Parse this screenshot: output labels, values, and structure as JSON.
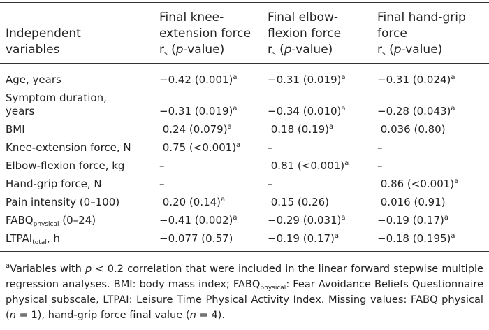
{
  "table": {
    "header": {
      "label": [
        "Independent",
        "variables"
      ],
      "columns": [
        {
          "title": [
            "Final knee-",
            "extension force"
          ],
          "stat": [
            {
              "text": "r"
            },
            {
              "text": "s",
              "fmt": "sub"
            },
            {
              "text": " ("
            },
            {
              "text": "p",
              "fmt": "i"
            },
            {
              "text": "-value)"
            }
          ]
        },
        {
          "title": [
            "Final elbow-",
            "flexion force"
          ],
          "stat": [
            {
              "text": "r"
            },
            {
              "text": "s",
              "fmt": "sub"
            },
            {
              "text": " ("
            },
            {
              "text": "p",
              "fmt": "i"
            },
            {
              "text": "-value)"
            }
          ]
        },
        {
          "title": [
            "Final hand-grip",
            "force"
          ],
          "stat": [
            {
              "text": "r"
            },
            {
              "text": "s",
              "fmt": "sub"
            },
            {
              "text": " ("
            },
            {
              "text": "p",
              "fmt": "i"
            },
            {
              "text": "-value)"
            }
          ]
        }
      ]
    },
    "rows": [
      {
        "label": [
          {
            "text": "Age, years"
          }
        ],
        "cells": [
          [
            {
              "text": "−0.42 (0.001)"
            },
            {
              "text": "a",
              "fmt": "sup"
            }
          ],
          [
            {
              "text": "−0.31 (0.019)"
            },
            {
              "text": "a",
              "fmt": "sup"
            }
          ],
          [
            {
              "text": "−0.31 (0.024)"
            },
            {
              "text": "a",
              "fmt": "sup"
            }
          ]
        ]
      },
      {
        "label": [
          {
            "text": "Symptom duration,"
          },
          {
            "text": "years",
            "fmt": "line"
          }
        ],
        "cells": [
          [
            {
              "text": "−0.31 (0.019)"
            },
            {
              "text": "a",
              "fmt": "sup"
            }
          ],
          [
            {
              "text": "−0.34 (0.010)"
            },
            {
              "text": "a",
              "fmt": "sup"
            }
          ],
          [
            {
              "text": "−0.28 (0.043)"
            },
            {
              "text": "a",
              "fmt": "sup"
            }
          ]
        ]
      },
      {
        "label": [
          {
            "text": "BMI"
          }
        ],
        "cells": [
          [
            {
              "text": " 0.24 (0.079)"
            },
            {
              "text": "a",
              "fmt": "sup"
            }
          ],
          [
            {
              "text": " 0.18 (0.19)"
            },
            {
              "text": "a",
              "fmt": "sup"
            }
          ],
          [
            {
              "text": " 0.036 (0.80)"
            }
          ]
        ]
      },
      {
        "label": [
          {
            "text": "Knee-extension force, N"
          }
        ],
        "cells": [
          [
            {
              "text": " 0.75 (<0.001)"
            },
            {
              "text": "a",
              "fmt": "sup"
            }
          ],
          [
            {
              "text": "–"
            }
          ],
          [
            {
              "text": "–"
            }
          ]
        ]
      },
      {
        "label": [
          {
            "text": "Elbow-flexion force, kg"
          }
        ],
        "cells": [
          [
            {
              "text": "–"
            }
          ],
          [
            {
              "text": " 0.81 (<0.001)"
            },
            {
              "text": "a",
              "fmt": "sup"
            }
          ],
          [
            {
              "text": "–"
            }
          ]
        ]
      },
      {
        "label": [
          {
            "text": "Hand-grip force, N"
          }
        ],
        "cells": [
          [
            {
              "text": "–"
            }
          ],
          [
            {
              "text": "–"
            }
          ],
          [
            {
              "text": " 0.86 (<0.001)"
            },
            {
              "text": "a",
              "fmt": "sup"
            }
          ]
        ]
      },
      {
        "label": [
          {
            "text": "Pain intensity (0–100)"
          }
        ],
        "cells": [
          [
            {
              "text": " 0.20 (0.14)"
            },
            {
              "text": "a",
              "fmt": "sup"
            }
          ],
          [
            {
              "text": " 0.15 (0.26)"
            }
          ],
          [
            {
              "text": " 0.016 (0.91)"
            }
          ]
        ]
      },
      {
        "label": [
          {
            "text": "FABQ"
          },
          {
            "text": "physical",
            "fmt": "sub"
          },
          {
            "text": " (0–24)"
          }
        ],
        "cells": [
          [
            {
              "text": "−0.41 (0.002)"
            },
            {
              "text": "a",
              "fmt": "sup"
            }
          ],
          [
            {
              "text": "−0.29 (0.031)"
            },
            {
              "text": "a",
              "fmt": "sup"
            }
          ],
          [
            {
              "text": "−0.19 (0.17)"
            },
            {
              "text": "a",
              "fmt": "sup"
            }
          ]
        ]
      },
      {
        "label": [
          {
            "text": "LTPAI"
          },
          {
            "text": "total",
            "fmt": "sub"
          },
          {
            "text": ", h"
          }
        ],
        "cells": [
          [
            {
              "text": "−0.077 (0.57)"
            }
          ],
          [
            {
              "text": "−0.19 (0.17)"
            },
            {
              "text": "a",
              "fmt": "sup"
            }
          ],
          [
            {
              "text": "−0.18 (0.195)"
            },
            {
              "text": "a",
              "fmt": "sup"
            }
          ]
        ]
      }
    ],
    "footnote": [
      {
        "text": "a",
        "fmt": "sup"
      },
      {
        "text": "Variables with "
      },
      {
        "text": "p",
        "fmt": "i"
      },
      {
        "text": " < 0.2 correlation that were included in the linear forward stepwise multiple regression analyses. BMI: body mass index; FABQ"
      },
      {
        "text": "physical",
        "fmt": "sub"
      },
      {
        "text": ": Fear Avoidance Beliefs Questionnaire physical subscale, LTPAI: Leisure Time Physical Activity Index. Missing values: FABQ physical ("
      },
      {
        "text": "n",
        "fmt": "i"
      },
      {
        "text": " = 1), hand-grip force final value ("
      },
      {
        "text": "n",
        "fmt": "i"
      },
      {
        "text": " = 4)."
      }
    ]
  }
}
